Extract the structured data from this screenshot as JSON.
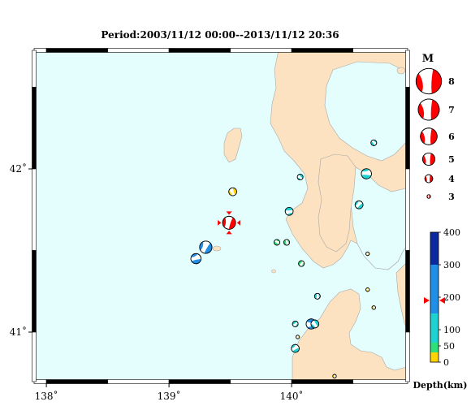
{
  "title": "Period:2003/11/12 00:00--2013/11/12 20:36",
  "map": {
    "lon_ticks": [
      {
        "value": 138,
        "label": "138˚"
      },
      {
        "value": 139,
        "label": "139˚"
      },
      {
        "value": 140,
        "label": "140˚"
      }
    ],
    "lat_ticks": [
      {
        "value": 42,
        "label": "42˚"
      },
      {
        "value": 41,
        "label": "41˚"
      }
    ],
    "colors": {
      "sea": "#e4fefe",
      "land": "#fce2c0",
      "coast": "#a8a8a8",
      "mechanism": "#ff0000"
    },
    "main_event": {
      "lon": 139.49,
      "lat": 41.67,
      "symbol": "star-mechanism"
    },
    "events": [
      {
        "lon": 139.52,
        "lat": 41.86,
        "mag": 4.0,
        "depth": 20
      },
      {
        "lon": 139.3,
        "lat": 41.52,
        "mag": 5.0,
        "depth": 160
      },
      {
        "lon": 139.22,
        "lat": 41.45,
        "mag": 4.5,
        "depth": 170
      },
      {
        "lon": 139.88,
        "lat": 41.55,
        "mag": 3.5,
        "depth": 30
      },
      {
        "lon": 139.96,
        "lat": 41.55,
        "mag": 3.5,
        "depth": 30
      },
      {
        "lon": 140.08,
        "lat": 41.42,
        "mag": 3.5,
        "depth": 35
      },
      {
        "lon": 139.98,
        "lat": 41.74,
        "mag": 4.0,
        "depth": 110
      },
      {
        "lon": 140.07,
        "lat": 41.95,
        "mag": 3.5,
        "depth": 115
      },
      {
        "lon": 140.62,
        "lat": 41.48,
        "mag": 3.0,
        "depth": 25
      },
      {
        "lon": 140.55,
        "lat": 41.78,
        "mag": 4.0,
        "depth": 120
      },
      {
        "lon": 140.61,
        "lat": 41.97,
        "mag": 4.5,
        "depth": 110
      },
      {
        "lon": 140.67,
        "lat": 42.16,
        "mag": 3.5,
        "depth": 110
      },
      {
        "lon": 140.21,
        "lat": 41.22,
        "mag": 3.5,
        "depth": 110
      },
      {
        "lon": 140.03,
        "lat": 41.05,
        "mag": 3.5,
        "depth": 115
      },
      {
        "lon": 140.16,
        "lat": 41.05,
        "mag": 4.5,
        "depth": 150
      },
      {
        "lon": 140.19,
        "lat": 41.05,
        "mag": 4.0,
        "depth": 120
      },
      {
        "lon": 140.05,
        "lat": 40.97,
        "mag": 3.0,
        "depth": 25
      },
      {
        "lon": 140.03,
        "lat": 40.9,
        "mag": 4.0,
        "depth": 110
      },
      {
        "lon": 140.62,
        "lat": 41.26,
        "mag": 3.0,
        "depth": 20
      },
      {
        "lon": 140.67,
        "lat": 41.15,
        "mag": 3.0,
        "depth": 20
      },
      {
        "lon": 140.35,
        "lat": 40.73,
        "mag": 3.0,
        "depth": 20
      }
    ]
  },
  "legend": {
    "magnitude_title": "M",
    "magnitudes": [
      {
        "value": 8,
        "label": "8"
      },
      {
        "value": 7,
        "label": "7"
      },
      {
        "value": 6,
        "label": "6"
      },
      {
        "value": 5,
        "label": "5"
      },
      {
        "value": 4,
        "label": "4"
      },
      {
        "value": 3,
        "label": "3"
      }
    ],
    "depth_title": "Depth(km)",
    "depth_ticks": [
      {
        "value": 400,
        "label": "400"
      },
      {
        "value": 300,
        "label": "300"
      },
      {
        "value": 200,
        "label": "200"
      },
      {
        "value": 100,
        "label": "100"
      },
      {
        "value": 50,
        "label": "50"
      },
      {
        "value": 0,
        "label": "0"
      }
    ],
    "depth_bands": [
      {
        "from": 0,
        "to": 30,
        "color": "#ffd400"
      },
      {
        "from": 30,
        "to": 60,
        "color": "#2fe07a"
      },
      {
        "from": 60,
        "to": 150,
        "color": "#1fd2d2"
      },
      {
        "from": 150,
        "to": 300,
        "color": "#1f8fe8"
      },
      {
        "from": 300,
        "to": 400,
        "color": "#0c2aa0"
      }
    ],
    "depth_marker_value": 190
  }
}
